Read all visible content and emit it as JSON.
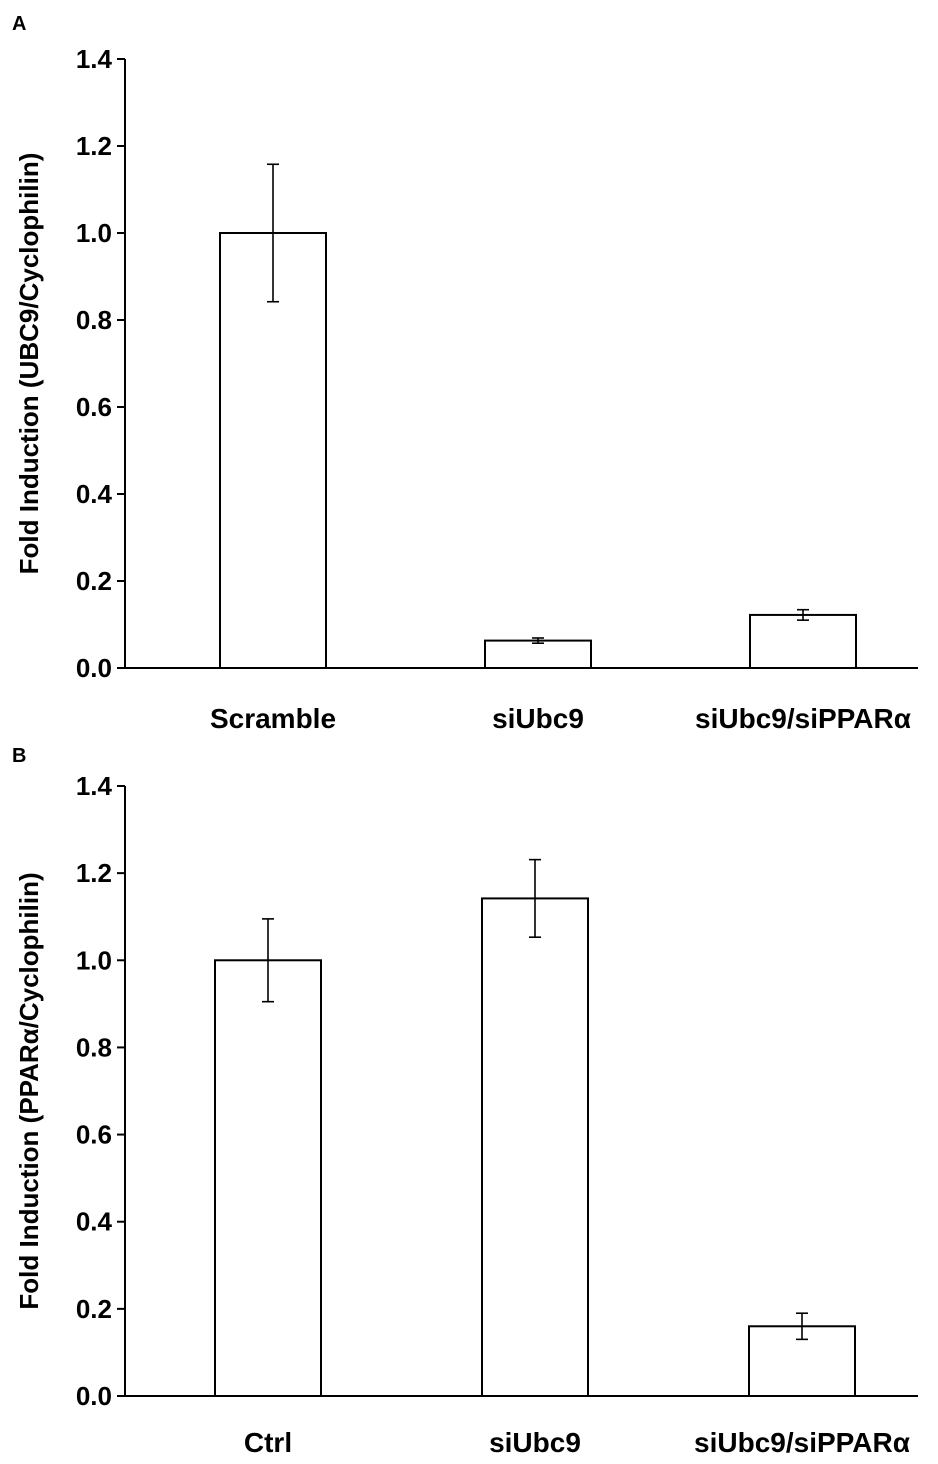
{
  "chart_data": [
    {
      "type": "bar",
      "panel": "A",
      "categories": [
        "Scramble",
        "siUbc9",
        "siUbc9/siPPARα"
      ],
      "values": [
        1.0,
        0.063,
        0.122
      ],
      "errors": [
        0.158,
        0.006,
        0.012
      ],
      "ylabel": "Fold Induction (UBC9/Cyclophilin)",
      "xlabel": "",
      "ylim": [
        0,
        1.4
      ],
      "yticks": [
        "0.0",
        "0.2",
        "0.4",
        "0.6",
        "0.8",
        "1.0",
        "1.2",
        "1.4"
      ],
      "grid": false,
      "bar_fill": "#ffffff",
      "bar_stroke": "#000000"
    },
    {
      "type": "bar",
      "panel": "B",
      "categories": [
        "Ctrl",
        "siUbc9",
        "siUbc9/siPPARα"
      ],
      "values": [
        1.0,
        1.142,
        0.16
      ],
      "errors": [
        0.095,
        0.089,
        0.03
      ],
      "ylabel": "Fold Induction (PPARα/Cyclophilin)",
      "xlabel": "",
      "ylim": [
        0,
        1.4
      ],
      "yticks": [
        "0.0",
        "0.2",
        "0.4",
        "0.6",
        "0.8",
        "1.0",
        "1.2",
        "1.4"
      ],
      "grid": false,
      "bar_fill": "#ffffff",
      "bar_stroke": "#000000"
    }
  ]
}
